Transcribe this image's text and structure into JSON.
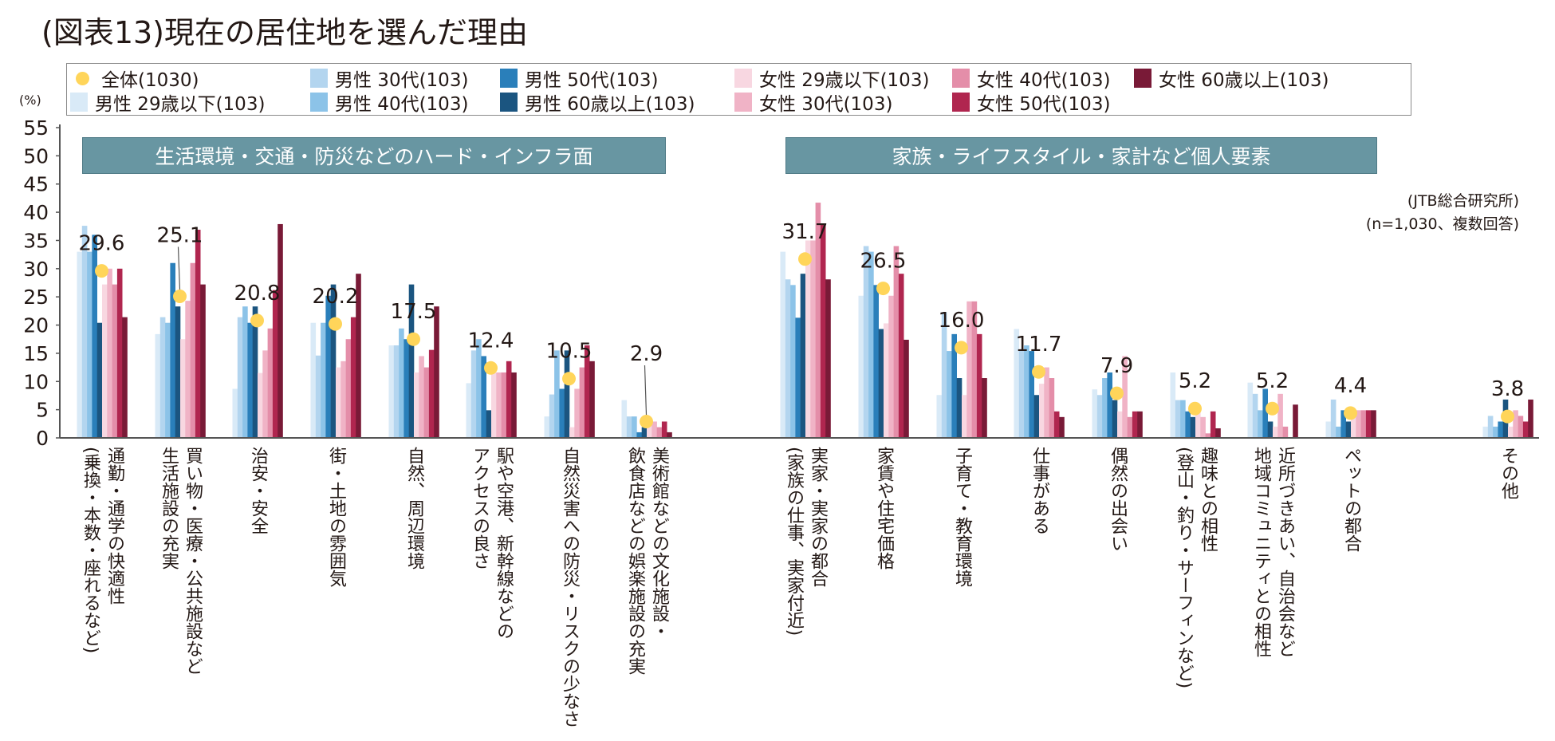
{
  "title": "(図表13)現在の居住地を選んだ理由",
  "unit_label": "(%)",
  "source_note_1": "(JTB総合研究所)",
  "source_note_2": "(n=1,030、複数回答)",
  "section_headers": [
    "生活環境・交通・防災などのハード・インフラ面",
    "家族・ライフスタイル・家計など個人要素"
  ],
  "legend": [
    {
      "label": "全体(1030)",
      "color": "#ffd55a",
      "marker": "dot"
    },
    {
      "label": "男性 29歳以下(103)",
      "color": "#d9eaf7",
      "marker": "bar"
    },
    {
      "label": "男性 30代(103)",
      "color": "#b3d5ef",
      "marker": "bar"
    },
    {
      "label": "男性 40代(103)",
      "color": "#8cc3e8",
      "marker": "bar"
    },
    {
      "label": "男性 50代(103)",
      "color": "#2a7fba",
      "marker": "bar"
    },
    {
      "label": "男性 60歳以上(103)",
      "color": "#1b5580",
      "marker": "bar"
    },
    {
      "label": "女性 29歳以下(103)",
      "color": "#f8d7e1",
      "marker": "bar"
    },
    {
      "label": "女性 30代(103)",
      "color": "#f0b3c6",
      "marker": "bar"
    },
    {
      "label": "女性 40代(103)",
      "color": "#e48ea9",
      "marker": "bar"
    },
    {
      "label": "女性 50代(103)",
      "color": "#b0264f",
      "marker": "bar"
    },
    {
      "label": "女性 60歳以上(103)",
      "color": "#791a37",
      "marker": "bar"
    }
  ],
  "chart_data": {
    "type": "bar",
    "title": "(図表13)現在の居住地を選んだ理由",
    "xlabel": "",
    "ylabel": "(%)",
    "ylim": [
      0,
      55
    ],
    "yticks": [
      0,
      5,
      10,
      15,
      20,
      25,
      30,
      35,
      40,
      45,
      50,
      55
    ],
    "grid": false,
    "legend_position": "top",
    "categories": [
      "通勤・通学の快適性\n(乗換・本数・座れるなど)",
      "買い物・医療・公共施設など\n生活施設の充実",
      "治安・安全",
      "街・土地の雰囲気",
      "自然、周辺環境",
      "駅や空港、新幹線などの\nアクセスの良さ",
      "自然災害への防災・リスクの少なさ",
      "美術館などの文化施設・\n飲食店などの娯楽施設の充実",
      "実家・実家の都合\n(家族の仕事、実家付近)",
      "家賃や住宅価格",
      "子育て・教育環境",
      "仕事がある",
      "偶然の出会い",
      "趣味との相性\n(登山・釣り・サーフィンなど)",
      "近所づきあい、自治会など\n地域コミュニティとの相性",
      "ペットの都合",
      "その他"
    ],
    "category_group": [
      "hard",
      "hard",
      "hard",
      "hard",
      "hard",
      "hard",
      "hard",
      "hard",
      "personal",
      "personal",
      "personal",
      "personal",
      "personal",
      "personal",
      "personal",
      "personal",
      "other"
    ],
    "total_series": {
      "name": "全体(1030)",
      "type": "scatter",
      "values": [
        29.6,
        25.1,
        20.8,
        20.2,
        17.5,
        12.4,
        10.5,
        2.9,
        31.7,
        26.5,
        16.0,
        11.7,
        7.9,
        5.2,
        5.2,
        4.4,
        3.8
      ]
    },
    "series": [
      {
        "name": "男性 29歳以下(103)",
        "values": [
          33.0,
          18.4,
          8.7,
          20.4,
          16.4,
          9.7,
          3.8,
          6.7,
          33.0,
          25.2,
          7.6,
          19.3,
          8.6,
          11.6,
          9.8,
          2.9,
          2.0
        ]
      },
      {
        "name": "男性 30代(103)",
        "values": [
          37.6,
          21.4,
          21.4,
          14.6,
          16.4,
          15.5,
          7.7,
          3.8,
          28.1,
          34.0,
          22.3,
          15.4,
          7.6,
          6.7,
          7.8,
          6.8,
          3.9
        ]
      },
      {
        "name": "男性 40代(103)",
        "values": [
          33.0,
          20.4,
          23.3,
          20.4,
          19.4,
          17.5,
          15.5,
          3.8,
          27.1,
          33.0,
          15.4,
          16.4,
          10.6,
          6.7,
          4.9,
          2.0,
          2.0
        ]
      },
      {
        "name": "男性 50代(103)",
        "values": [
          36.0,
          31.0,
          20.4,
          25.2,
          17.5,
          14.5,
          8.7,
          1.0,
          21.3,
          27.1,
          18.4,
          15.4,
          11.6,
          4.7,
          8.7,
          4.9,
          2.9
        ]
      },
      {
        "name": "男性 60歳以上(103)",
        "values": [
          20.4,
          23.3,
          23.3,
          27.2,
          27.2,
          4.9,
          15.5,
          1.9,
          29.1,
          19.3,
          10.6,
          7.6,
          6.7,
          3.7,
          2.9,
          2.9,
          6.8
        ]
      },
      {
        "name": "女性 29歳以下(103)",
        "values": [
          27.2,
          17.5,
          11.5,
          12.5,
          11.6,
          11.6,
          1.9,
          2.9,
          35.0,
          20.3,
          7.6,
          9.6,
          4.7,
          4.7,
          2.0,
          4.9,
          2.0
        ]
      },
      {
        "name": "女性 30代(103)",
        "values": [
          30.0,
          24.3,
          15.5,
          13.6,
          14.5,
          11.6,
          8.7,
          2.9,
          35.0,
          25.2,
          24.2,
          12.5,
          14.5,
          3.7,
          7.8,
          4.9,
          4.9
        ]
      },
      {
        "name": "女性 40代(103)",
        "values": [
          27.2,
          31.0,
          19.4,
          17.5,
          12.5,
          11.6,
          12.5,
          1.9,
          41.7,
          34.0,
          24.2,
          10.6,
          3.7,
          0.8,
          2.0,
          4.9,
          3.9
        ]
      },
      {
        "name": "女性 50代(103)",
        "values": [
          30.0,
          36.9,
          26.2,
          21.4,
          15.6,
          13.6,
          16.4,
          2.9,
          37.8,
          29.1,
          18.4,
          4.7,
          4.7,
          4.7,
          0.0,
          4.9,
          2.9
        ]
      },
      {
        "name": "女性 60歳以上(103)",
        "values": [
          21.4,
          27.2,
          37.9,
          29.1,
          23.3,
          11.6,
          13.6,
          1.0,
          28.1,
          17.4,
          10.6,
          3.7,
          4.7,
          1.7,
          5.9,
          4.9,
          6.8
        ]
      }
    ],
    "data_labels": [
      "29.6",
      "25.1",
      "20.8",
      "20.2",
      "17.5",
      "12.4",
      "10.5",
      "2.9",
      "31.7",
      "26.5",
      "16.0",
      "11.7",
      "7.9",
      "5.2",
      "5.2",
      "4.4",
      "3.8"
    ]
  }
}
